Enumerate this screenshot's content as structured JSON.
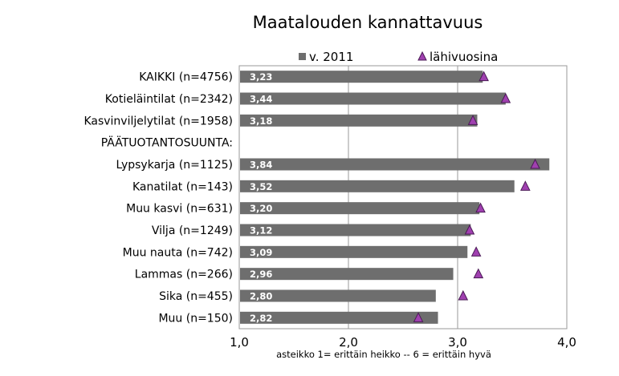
{
  "chart_data": {
    "type": "bar",
    "orientation": "horizontal",
    "title": "Maatalouden kannattavuus",
    "categories": [
      "KAIKKI (n=4756)",
      "Kotieläintilat (n=2342)",
      "Kasvinviljelytilat (n=1958)",
      "PÄÄTUOTANTOSUUNTA:",
      "Lypsykarja (n=1125)",
      "Kanatilat (n=143)",
      "Muu kasvi (n=631)",
      "Vilja (n=1249)",
      "Muu nauta (n=742)",
      "Lammas (n=266)",
      "Sika (n=455)",
      "Muu (n=150)"
    ],
    "series": [
      {
        "name": "v. 2011",
        "type": "bar",
        "color": "#6e6e6e",
        "values": [
          3.23,
          3.44,
          3.18,
          null,
          3.84,
          3.52,
          3.2,
          3.12,
          3.09,
          2.96,
          2.8,
          2.82
        ],
        "labels": [
          "3,23",
          "3,44",
          "3,18",
          "",
          "3,84",
          "3,52",
          "3,20",
          "3,12",
          "3,09",
          "2,96",
          "2,80",
          "2,82"
        ]
      },
      {
        "name": "lähivuosina",
        "type": "marker",
        "marker": "triangle",
        "color": "#a040b0",
        "values": [
          3.24,
          3.44,
          3.14,
          null,
          3.71,
          3.62,
          3.21,
          3.11,
          3.17,
          3.19,
          3.05,
          2.64
        ]
      }
    ],
    "xlim": [
      1.0,
      4.0
    ],
    "xticks": [
      1.0,
      2.0,
      3.0,
      4.0
    ],
    "xtick_labels": [
      "1,0",
      "2,0",
      "3,0",
      "4,0"
    ],
    "xlabel": "asteikko 1= erittäin heikko -- 6 = erittäin hyvä",
    "grid": "vertical",
    "legend": "top"
  }
}
